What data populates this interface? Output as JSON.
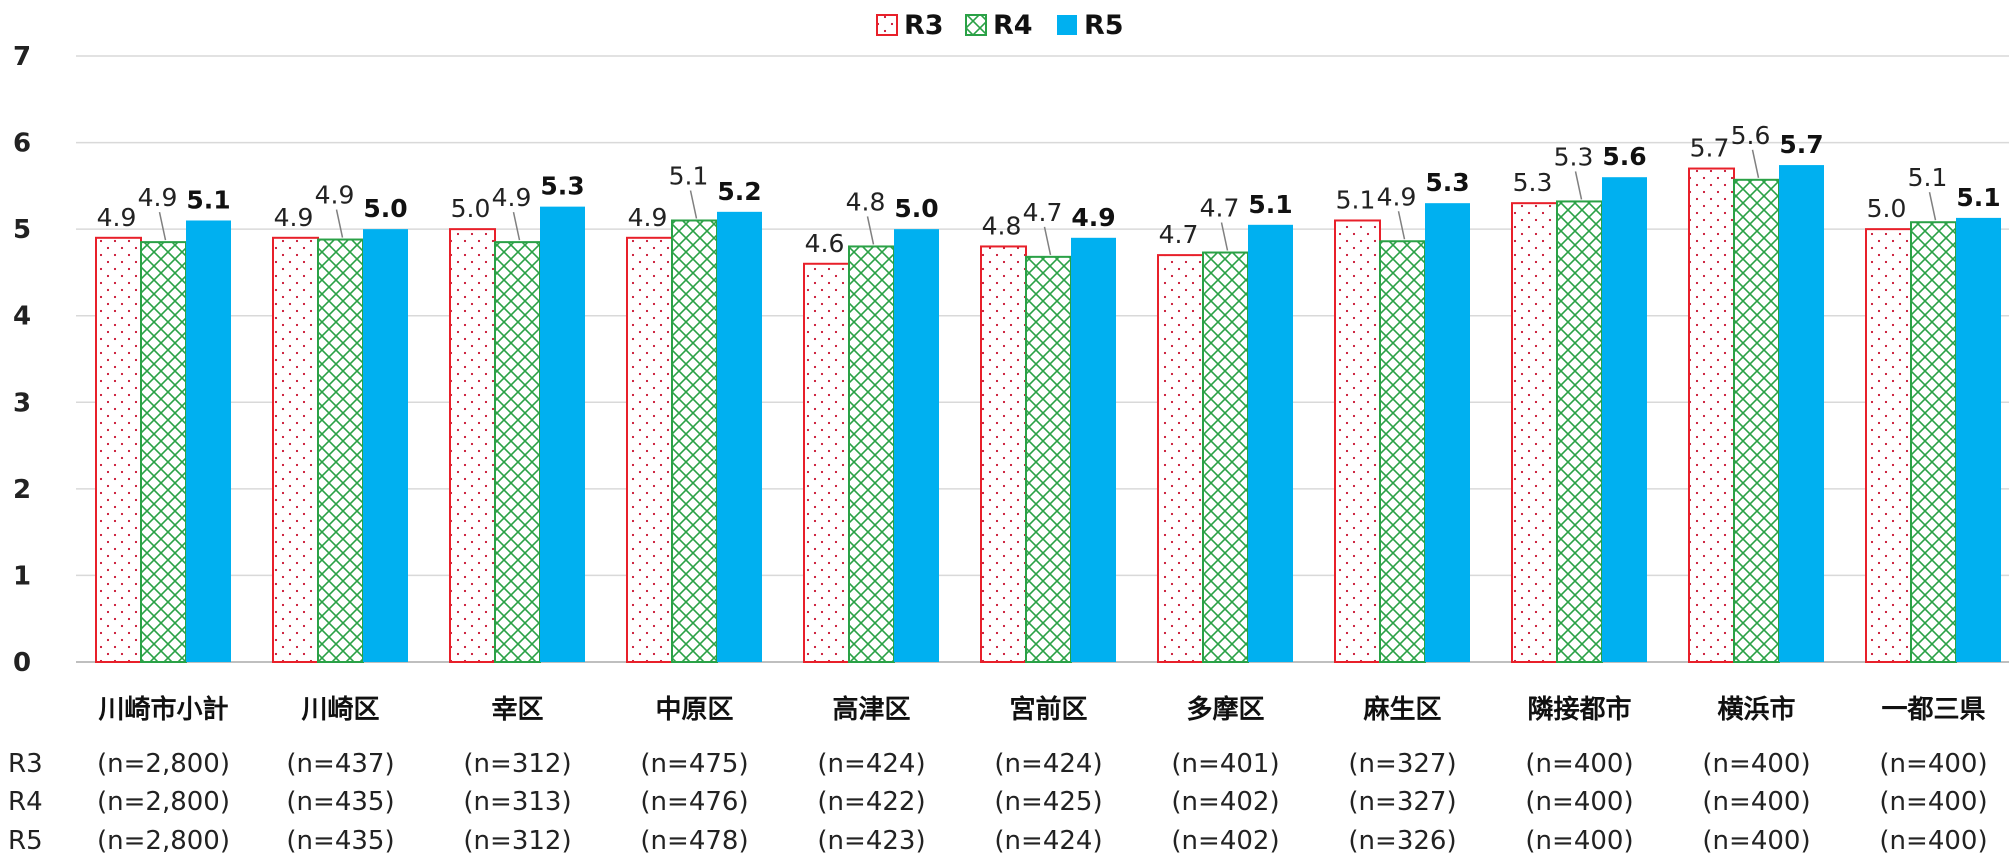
{
  "chart_data": {
    "type": "bar",
    "title": "",
    "xlabel": "",
    "ylabel": "",
    "ylim": [
      0,
      7
    ],
    "yticks": [
      "0",
      "1",
      "2",
      "3",
      "4",
      "5",
      "6",
      "7"
    ],
    "grid": true,
    "legend_position": "top-center",
    "categories": [
      "川崎市小計",
      "川崎区",
      "幸区",
      "中原区",
      "高津区",
      "宮前区",
      "多摩区",
      "麻生区",
      "隣接都市",
      "横浜市",
      "一都三県"
    ],
    "series": [
      {
        "name": "R3",
        "values": [
          4.9,
          4.9,
          5.0,
          4.9,
          4.6,
          4.8,
          4.7,
          5.1,
          5.3,
          5.7,
          5.0
        ],
        "labels": [
          "4.9",
          "4.9",
          "5.0",
          "4.9",
          "4.6",
          "4.8",
          "4.7",
          "5.1",
          "5.3",
          "5.7",
          "5.0"
        ],
        "color": "#e8202a",
        "pattern": "dots"
      },
      {
        "name": "R4",
        "values": [
          4.85,
          4.88,
          4.85,
          5.1,
          4.8,
          4.68,
          4.73,
          4.86,
          5.32,
          5.57,
          5.08
        ],
        "labels": [
          "4.9",
          "4.9",
          "4.9",
          "5.1",
          "4.8",
          "4.7",
          "4.7",
          "4.9",
          "5.3",
          "5.6",
          "5.1"
        ],
        "color": "#2aa146",
        "pattern": "crosshatch"
      },
      {
        "name": "R5",
        "values": [
          5.1,
          5.0,
          5.26,
          5.2,
          5.0,
          4.9,
          5.05,
          5.3,
          5.6,
          5.74,
          5.13
        ],
        "labels": [
          "5.1",
          "5.0",
          "5.3",
          "5.2",
          "5.0",
          "4.9",
          "5.1",
          "5.3",
          "5.6",
          "5.7",
          "5.1"
        ],
        "color": "#00b0f0",
        "pattern": "solid"
      }
    ],
    "sample_rows": [
      {
        "label": "R3",
        "values": [
          "(n=2,800)",
          "(n=437)",
          "(n=312)",
          "(n=475)",
          "(n=424)",
          "(n=424)",
          "(n=401)",
          "(n=327)",
          "(n=400)",
          "(n=400)",
          "(n=400)"
        ]
      },
      {
        "label": "R4",
        "values": [
          "(n=2,800)",
          "(n=435)",
          "(n=313)",
          "(n=476)",
          "(n=422)",
          "(n=425)",
          "(n=402)",
          "(n=327)",
          "(n=400)",
          "(n=400)",
          "(n=400)"
        ]
      },
      {
        "label": "R5",
        "values": [
          "(n=2,800)",
          "(n=435)",
          "(n=312)",
          "(n=478)",
          "(n=423)",
          "(n=424)",
          "(n=402)",
          "(n=326)",
          "(n=400)",
          "(n=400)",
          "(n=400)"
        ]
      }
    ]
  }
}
